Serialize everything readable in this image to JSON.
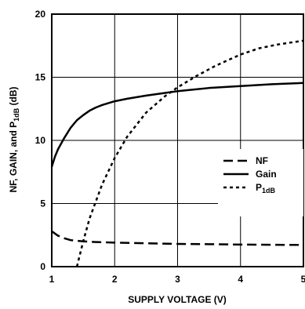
{
  "chart_data": {
    "type": "line",
    "xlabel": "SUPPLY VOLTAGE (V)",
    "ylabel": {
      "main": "NF, GAIN, and P",
      "sub": "1dB",
      "tail": " (dB)"
    },
    "xlim": [
      1,
      5
    ],
    "ylim": [
      0,
      20
    ],
    "xticks": [
      1,
      2,
      3,
      4,
      5
    ],
    "yticks": [
      0,
      5,
      10,
      15,
      20
    ],
    "xtick_labels": [
      "1",
      "2",
      "3",
      "4",
      "5"
    ],
    "ytick_labels": [
      "0",
      "5",
      "10",
      "15",
      "20"
    ],
    "grid": true,
    "legend_position": "right-middle",
    "series": [
      {
        "name": "NF",
        "label_main": "NF",
        "label_sub": "",
        "dash": "long-dash",
        "x": [
          1.0,
          1.1,
          1.2,
          1.3,
          1.5,
          1.7,
          2.0,
          2.5,
          3.0,
          3.5,
          4.0,
          4.5,
          5.0
        ],
        "y": [
          2.8,
          2.45,
          2.25,
          2.1,
          2.0,
          1.95,
          1.9,
          1.85,
          1.8,
          1.78,
          1.75,
          1.73,
          1.72
        ]
      },
      {
        "name": "Gain",
        "label_main": "Gain",
        "label_sub": "",
        "dash": "solid",
        "x": [
          1.0,
          1.05,
          1.1,
          1.2,
          1.3,
          1.4,
          1.5,
          1.6,
          1.7,
          1.8,
          2.0,
          2.2,
          2.5,
          3.0,
          3.5,
          4.0,
          4.5,
          5.0
        ],
        "y": [
          7.9,
          8.7,
          9.3,
          10.2,
          11.0,
          11.6,
          12.0,
          12.35,
          12.6,
          12.8,
          13.1,
          13.3,
          13.55,
          13.9,
          14.15,
          14.3,
          14.45,
          14.55
        ]
      },
      {
        "name": "P1dB",
        "label_main": "P",
        "label_sub": "1dB",
        "dash": "short-dash",
        "x": [
          1.4,
          1.5,
          1.6,
          1.8,
          2.0,
          2.2,
          2.5,
          2.8,
          3.0,
          3.3,
          3.6,
          4.0,
          4.3,
          4.6,
          5.0
        ],
        "y": [
          0.0,
          2.0,
          3.8,
          6.5,
          8.6,
          10.3,
          12.2,
          13.5,
          14.2,
          15.1,
          15.9,
          16.8,
          17.3,
          17.6,
          17.9
        ]
      }
    ]
  }
}
